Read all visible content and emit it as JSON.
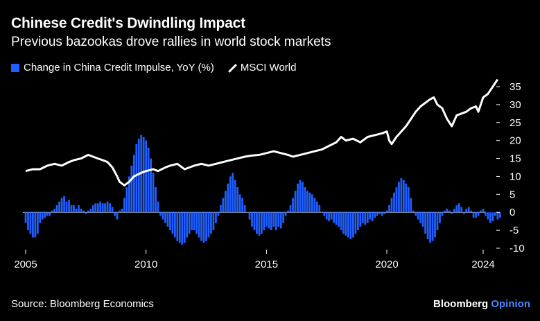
{
  "title": "Chinese Credit's Dwindling Impact",
  "subtitle": "Previous bazookas drove rallies in world stock markets",
  "legend": {
    "bars": "Change in China Credit Impulse, YoY (%)",
    "line": "MSCI World"
  },
  "source": "Source: Bloomberg Economics",
  "brand": {
    "name": "Bloomberg",
    "suffix": "Opinion"
  },
  "colors": {
    "bar": "#1f5eff",
    "line": "#ffffff",
    "background": "#000000",
    "brand_accent": "#4a86ff"
  },
  "chart_data": {
    "type": "bar+line",
    "title": "Chinese Credit's Dwindling Impact",
    "xlim": [
      2005,
      2024
    ],
    "ylim": [
      -10,
      37
    ],
    "x_ticks": [
      2005,
      2010,
      2015,
      2020,
      2024
    ],
    "y_ticks": [
      35,
      30,
      25,
      20,
      15,
      10,
      5,
      0,
      -5,
      -10
    ],
    "series": [
      {
        "name": "Change in China Credit Impulse, YoY (%)",
        "kind": "bar",
        "points": [
          [
            2005.0,
            -3
          ],
          [
            2005.1,
            -5
          ],
          [
            2005.2,
            -6
          ],
          [
            2005.3,
            -7
          ],
          [
            2005.4,
            -7
          ],
          [
            2005.5,
            -6
          ],
          [
            2005.6,
            -3
          ],
          [
            2005.7,
            -2
          ],
          [
            2005.8,
            -1.5
          ],
          [
            2005.9,
            -1
          ],
          [
            2006.0,
            -1
          ],
          [
            2006.1,
            0.5
          ],
          [
            2006.2,
            1
          ],
          [
            2006.3,
            2
          ],
          [
            2006.4,
            3
          ],
          [
            2006.5,
            4
          ],
          [
            2006.6,
            4.5
          ],
          [
            2006.7,
            3
          ],
          [
            2006.8,
            3.5
          ],
          [
            2006.9,
            2
          ],
          [
            2007.0,
            2
          ],
          [
            2007.1,
            1
          ],
          [
            2007.2,
            2
          ],
          [
            2007.3,
            1
          ],
          [
            2007.4,
            0.5
          ],
          [
            2007.5,
            -0.5
          ],
          [
            2007.6,
            0.5
          ],
          [
            2007.7,
            1
          ],
          [
            2007.8,
            2
          ],
          [
            2007.9,
            2.5
          ],
          [
            2008.0,
            2.5
          ],
          [
            2008.1,
            3
          ],
          [
            2008.2,
            2.5
          ],
          [
            2008.3,
            2.5
          ],
          [
            2008.4,
            3
          ],
          [
            2008.5,
            2.5
          ],
          [
            2008.6,
            1.5
          ],
          [
            2008.7,
            -1
          ],
          [
            2008.8,
            -2
          ],
          [
            2008.9,
            0.5
          ],
          [
            2009.0,
            1
          ],
          [
            2009.1,
            4
          ],
          [
            2009.2,
            7
          ],
          [
            2009.3,
            10
          ],
          [
            2009.4,
            13
          ],
          [
            2009.5,
            16
          ],
          [
            2009.6,
            19
          ],
          [
            2009.7,
            20.5
          ],
          [
            2009.8,
            21.5
          ],
          [
            2009.9,
            21
          ],
          [
            2010.0,
            20
          ],
          [
            2010.1,
            18
          ],
          [
            2010.2,
            15
          ],
          [
            2010.3,
            11
          ],
          [
            2010.4,
            7
          ],
          [
            2010.5,
            3
          ],
          [
            2010.6,
            -1
          ],
          [
            2010.7,
            -2
          ],
          [
            2010.8,
            -3
          ],
          [
            2010.9,
            -4
          ],
          [
            2011.0,
            -5
          ],
          [
            2011.1,
            -6
          ],
          [
            2011.2,
            -7
          ],
          [
            2011.3,
            -8
          ],
          [
            2011.4,
            -8.5
          ],
          [
            2011.5,
            -9
          ],
          [
            2011.6,
            -8.5
          ],
          [
            2011.7,
            -7
          ],
          [
            2011.8,
            -6
          ],
          [
            2011.9,
            -5
          ],
          [
            2012.0,
            -5
          ],
          [
            2012.1,
            -6
          ],
          [
            2012.2,
            -7
          ],
          [
            2012.3,
            -8
          ],
          [
            2012.4,
            -8.5
          ],
          [
            2012.5,
            -8
          ],
          [
            2012.6,
            -7
          ],
          [
            2012.7,
            -6
          ],
          [
            2012.8,
            -5
          ],
          [
            2012.9,
            -3
          ],
          [
            2013.0,
            -1
          ],
          [
            2013.1,
            2
          ],
          [
            2013.2,
            4
          ],
          [
            2013.3,
            6
          ],
          [
            2013.4,
            8
          ],
          [
            2013.5,
            10
          ],
          [
            2013.6,
            11
          ],
          [
            2013.7,
            9
          ],
          [
            2013.8,
            7
          ],
          [
            2013.9,
            5
          ],
          [
            2014.0,
            4
          ],
          [
            2014.1,
            2
          ],
          [
            2014.2,
            0
          ],
          [
            2014.3,
            -2
          ],
          [
            2014.4,
            -4
          ],
          [
            2014.5,
            -5
          ],
          [
            2014.6,
            -6
          ],
          [
            2014.7,
            -6.5
          ],
          [
            2014.8,
            -6
          ],
          [
            2014.9,
            -5
          ],
          [
            2015.0,
            -4
          ],
          [
            2015.1,
            -4.5
          ],
          [
            2015.2,
            -5
          ],
          [
            2015.3,
            -4
          ],
          [
            2015.4,
            -5
          ],
          [
            2015.5,
            -4
          ],
          [
            2015.6,
            -4.5
          ],
          [
            2015.7,
            -3
          ],
          [
            2015.8,
            -1
          ],
          [
            2015.9,
            0.5
          ],
          [
            2016.0,
            2
          ],
          [
            2016.1,
            4
          ],
          [
            2016.2,
            6
          ],
          [
            2016.3,
            8
          ],
          [
            2016.4,
            9
          ],
          [
            2016.5,
            8.5
          ],
          [
            2016.6,
            7
          ],
          [
            2016.7,
            6
          ],
          [
            2016.8,
            5.5
          ],
          [
            2016.9,
            5
          ],
          [
            2017.0,
            4
          ],
          [
            2017.1,
            3
          ],
          [
            2017.2,
            2
          ],
          [
            2017.3,
            0
          ],
          [
            2017.4,
            -1
          ],
          [
            2017.5,
            -2
          ],
          [
            2017.6,
            -2.5
          ],
          [
            2017.7,
            -2
          ],
          [
            2017.8,
            -3
          ],
          [
            2017.9,
            -3.5
          ],
          [
            2018.0,
            -4
          ],
          [
            2018.1,
            -5
          ],
          [
            2018.2,
            -6
          ],
          [
            2018.3,
            -6.5
          ],
          [
            2018.4,
            -7
          ],
          [
            2018.5,
            -7.5
          ],
          [
            2018.6,
            -7
          ],
          [
            2018.7,
            -6
          ],
          [
            2018.8,
            -5
          ],
          [
            2018.9,
            -4
          ],
          [
            2019.0,
            -3
          ],
          [
            2019.1,
            -3.5
          ],
          [
            2019.2,
            -3
          ],
          [
            2019.3,
            -2
          ],
          [
            2019.4,
            -2.5
          ],
          [
            2019.5,
            -1.5
          ],
          [
            2019.6,
            -1
          ],
          [
            2019.7,
            -0.5
          ],
          [
            2019.8,
            -1
          ],
          [
            2019.9,
            -0.5
          ],
          [
            2020.0,
            0.5
          ],
          [
            2020.1,
            2
          ],
          [
            2020.2,
            4
          ],
          [
            2020.3,
            5.5
          ],
          [
            2020.4,
            7
          ],
          [
            2020.5,
            8.5
          ],
          [
            2020.6,
            9.5
          ],
          [
            2020.7,
            9
          ],
          [
            2020.8,
            8
          ],
          [
            2020.9,
            7
          ],
          [
            2021.0,
            4
          ],
          [
            2021.1,
            0.5
          ],
          [
            2021.2,
            -1
          ],
          [
            2021.3,
            -2
          ],
          [
            2021.4,
            -3
          ],
          [
            2021.5,
            -4
          ],
          [
            2021.6,
            -6
          ],
          [
            2021.7,
            -7.5
          ],
          [
            2021.8,
            -8.5
          ],
          [
            2021.9,
            -8
          ],
          [
            2022.0,
            -7
          ],
          [
            2022.1,
            -5
          ],
          [
            2022.2,
            -3
          ],
          [
            2022.3,
            -1
          ],
          [
            2022.4,
            0.5
          ],
          [
            2022.5,
            1
          ],
          [
            2022.6,
            0.5
          ],
          [
            2022.7,
            -0.5
          ],
          [
            2022.8,
            1
          ],
          [
            2022.9,
            2
          ],
          [
            2023.0,
            2.5
          ],
          [
            2023.1,
            1.5
          ],
          [
            2023.2,
            -0.5
          ],
          [
            2023.3,
            1
          ],
          [
            2023.4,
            1.5
          ],
          [
            2023.5,
            0.5
          ],
          [
            2023.6,
            -1.5
          ],
          [
            2023.7,
            -1.5
          ],
          [
            2023.8,
            -1
          ],
          [
            2023.9,
            0.5
          ],
          [
            2024.0,
            1
          ],
          [
            2024.1,
            -1
          ],
          [
            2024.2,
            -2
          ],
          [
            2024.3,
            -3
          ],
          [
            2024.4,
            -2.5
          ],
          [
            2024.5,
            -1
          ],
          [
            2024.6,
            -2
          ],
          [
            2024.7,
            -1.5
          ]
        ]
      },
      {
        "name": "MSCI World",
        "kind": "line",
        "points": [
          [
            2005.0,
            11.5
          ],
          [
            2005.3,
            12
          ],
          [
            2005.6,
            12
          ],
          [
            2005.9,
            13
          ],
          [
            2006.2,
            13.5
          ],
          [
            2006.5,
            13
          ],
          [
            2006.8,
            14
          ],
          [
            2007.0,
            14.5
          ],
          [
            2007.3,
            15
          ],
          [
            2007.6,
            16
          ],
          [
            2007.8,
            15.5
          ],
          [
            2008.0,
            15
          ],
          [
            2008.2,
            14.5
          ],
          [
            2008.4,
            14
          ],
          [
            2008.6,
            12.5
          ],
          [
            2008.8,
            10
          ],
          [
            2008.9,
            8.5
          ],
          [
            2009.1,
            7.5
          ],
          [
            2009.3,
            8.5
          ],
          [
            2009.5,
            10
          ],
          [
            2009.8,
            11
          ],
          [
            2010.0,
            11.5
          ],
          [
            2010.3,
            12
          ],
          [
            2010.5,
            11.5
          ],
          [
            2010.8,
            12.5
          ],
          [
            2011.0,
            13
          ],
          [
            2011.3,
            13.5
          ],
          [
            2011.6,
            12
          ],
          [
            2011.8,
            12.5
          ],
          [
            2012.0,
            13
          ],
          [
            2012.3,
            13.5
          ],
          [
            2012.6,
            13
          ],
          [
            2012.9,
            13.5
          ],
          [
            2013.2,
            14
          ],
          [
            2013.5,
            14.5
          ],
          [
            2013.8,
            15
          ],
          [
            2014.1,
            15.5
          ],
          [
            2014.4,
            15.8
          ],
          [
            2014.7,
            16
          ],
          [
            2015.0,
            16.5
          ],
          [
            2015.3,
            17
          ],
          [
            2015.6,
            16.5
          ],
          [
            2015.9,
            16
          ],
          [
            2016.1,
            15.5
          ],
          [
            2016.4,
            16
          ],
          [
            2016.7,
            16.5
          ],
          [
            2017.0,
            17
          ],
          [
            2017.3,
            17.5
          ],
          [
            2017.6,
            18.5
          ],
          [
            2017.9,
            19.5
          ],
          [
            2018.1,
            21
          ],
          [
            2018.3,
            20
          ],
          [
            2018.6,
            20.5
          ],
          [
            2018.9,
            19.5
          ],
          [
            2019.0,
            20
          ],
          [
            2019.2,
            21
          ],
          [
            2019.5,
            21.5
          ],
          [
            2019.8,
            22
          ],
          [
            2020.0,
            22.5
          ],
          [
            2020.1,
            20
          ],
          [
            2020.2,
            19
          ],
          [
            2020.4,
            21
          ],
          [
            2020.6,
            22.5
          ],
          [
            2020.8,
            24
          ],
          [
            2021.0,
            26
          ],
          [
            2021.2,
            28
          ],
          [
            2021.4,
            29.5
          ],
          [
            2021.6,
            30.5
          ],
          [
            2021.8,
            31.5
          ],
          [
            2021.95,
            32
          ],
          [
            2022.1,
            30
          ],
          [
            2022.3,
            29
          ],
          [
            2022.5,
            26
          ],
          [
            2022.7,
            24
          ],
          [
            2022.9,
            27
          ],
          [
            2023.1,
            27.5
          ],
          [
            2023.3,
            28
          ],
          [
            2023.5,
            29
          ],
          [
            2023.7,
            29.5
          ],
          [
            2023.8,
            28
          ],
          [
            2023.9,
            30
          ],
          [
            2024.0,
            32
          ],
          [
            2024.2,
            33
          ],
          [
            2024.4,
            35
          ],
          [
            2024.5,
            36
          ],
          [
            2024.6,
            37
          ]
        ]
      }
    ]
  }
}
